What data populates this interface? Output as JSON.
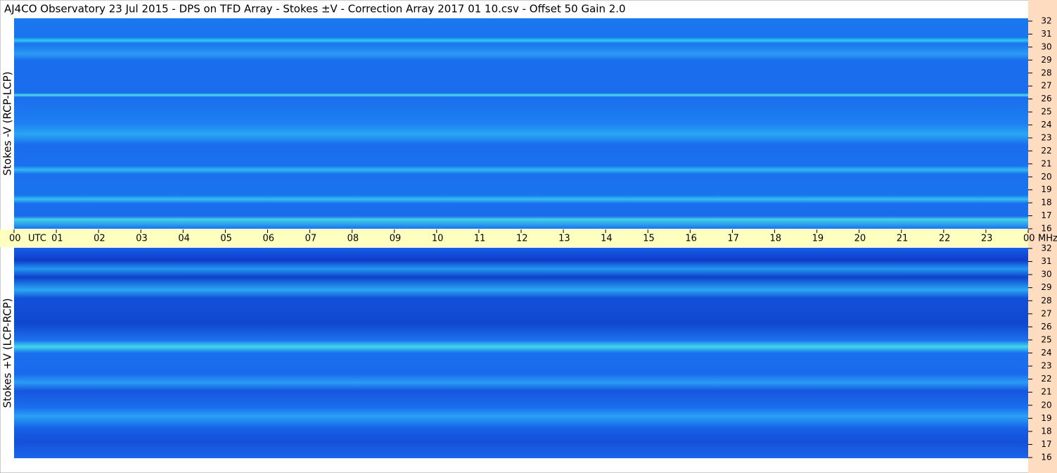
{
  "title": "AJ4CO Observatory  23 Jul 2015  -  DPS on TFD Array  -  Stokes ±V  -  Correction Array 2017 01 10.csv  -  Offset 50  Gain 2.0",
  "time_axis": {
    "unit": "UTC",
    "xlim": [
      0,
      24
    ],
    "xticks": [
      {
        "value": 0,
        "label": "00"
      },
      {
        "value": 1,
        "label": "01"
      },
      {
        "value": 2,
        "label": "02"
      },
      {
        "value": 3,
        "label": "03"
      },
      {
        "value": 4,
        "label": "04"
      },
      {
        "value": 5,
        "label": "05"
      },
      {
        "value": 6,
        "label": "06"
      },
      {
        "value": 7,
        "label": "07"
      },
      {
        "value": 8,
        "label": "08"
      },
      {
        "value": 9,
        "label": "09"
      },
      10,
      11,
      12,
      13,
      14,
      15,
      16,
      17,
      18,
      19,
      20,
      21,
      22,
      23,
      {
        "value": 24,
        "label": "00"
      }
    ]
  },
  "freq_unit": "MHz",
  "chart_data": [
    {
      "type": "spectrogram",
      "ylabel": "Stokes -V (RCP-LCP)",
      "ylim": [
        16,
        32
      ],
      "yticks": [
        16,
        17,
        18,
        19,
        20,
        21,
        22,
        23,
        24,
        25,
        26,
        27,
        28,
        29,
        30,
        31,
        32
      ]
    },
    {
      "type": "spectrogram",
      "ylabel": "Stokes +V (LCP-RCP)",
      "ylim": [
        16,
        32
      ],
      "yticks": [
        16,
        17,
        18,
        19,
        20,
        21,
        22,
        23,
        24,
        25,
        26,
        27,
        28,
        29,
        30,
        31,
        32
      ]
    }
  ]
}
